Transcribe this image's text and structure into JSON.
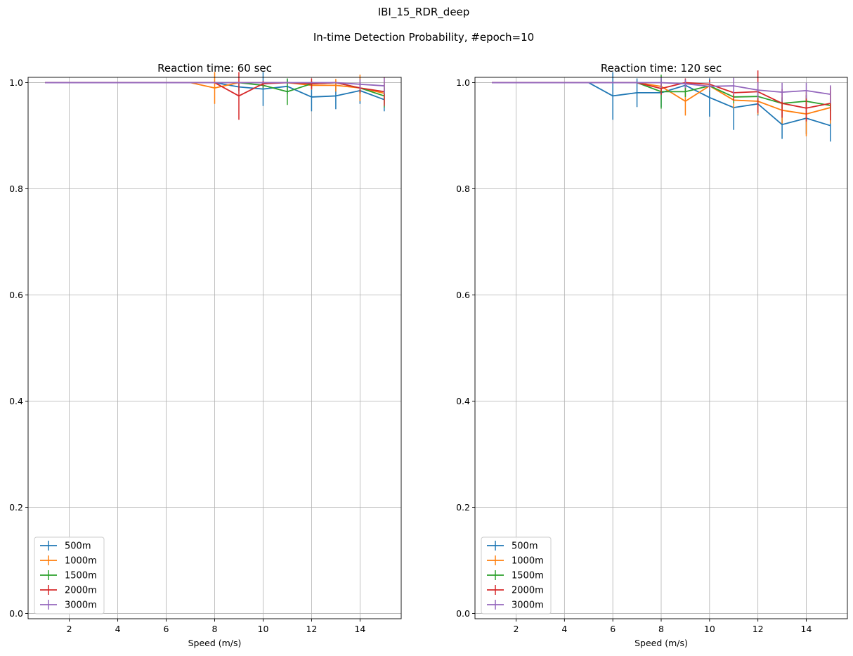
{
  "figure": {
    "title": "IBI_15_RDR_deep",
    "subtitle": "In-time Detection Probability, #epoch=10"
  },
  "chart_data": [
    {
      "type": "line",
      "title": "Reaction time: 60 sec",
      "xlabel": "Speed (m/s)",
      "ylabel": "",
      "xlim": [
        0.3,
        15.7
      ],
      "ylim": [
        -0.01,
        1.01
      ],
      "xticks": [
        2,
        4,
        6,
        8,
        10,
        12,
        14
      ],
      "yticks": [
        0.0,
        0.2,
        0.4,
        0.6,
        0.8,
        1.0
      ],
      "grid": true,
      "legend_position": "lower-left",
      "x": [
        1,
        2,
        3,
        4,
        5,
        6,
        7,
        8,
        9,
        10,
        11,
        12,
        13,
        14,
        15
      ],
      "series": [
        {
          "name": "500m",
          "color": "#1f77b4",
          "values": [
            1,
            1,
            1,
            1,
            1,
            1,
            1,
            1,
            0.992,
            0.988,
            0.993,
            0.973,
            0.975,
            0.985,
            0.968
          ],
          "errors": [
            0,
            0,
            0,
            0,
            0,
            0,
            0,
            0,
            0.008,
            0.032,
            0.014,
            0.027,
            0.025,
            0.025,
            0.022
          ]
        },
        {
          "name": "1000m",
          "color": "#ff7f0e",
          "values": [
            1,
            1,
            1,
            1,
            1,
            1,
            1,
            0.99,
            1,
            1,
            1,
            0.995,
            0.995,
            0.99,
            0.98
          ],
          "errors": [
            0,
            0,
            0,
            0,
            0,
            0,
            0,
            0.03,
            0,
            0,
            0,
            0.008,
            0.012,
            0.025,
            0.02
          ]
        },
        {
          "name": "1500m",
          "color": "#2ca02c",
          "values": [
            1,
            1,
            1,
            1,
            1,
            1,
            1,
            1,
            1,
            0.995,
            0.983,
            0.998,
            1,
            0.99,
            0.975
          ],
          "errors": [
            0,
            0,
            0,
            0,
            0,
            0,
            0,
            0,
            0,
            0.005,
            0.025,
            0.005,
            0,
            0.01,
            0.022
          ]
        },
        {
          "name": "2000m",
          "color": "#d62728",
          "values": [
            1,
            1,
            1,
            1,
            1,
            1,
            1,
            1,
            0.975,
            0.998,
            1,
            0.998,
            1,
            0.99,
            0.983
          ],
          "errors": [
            0,
            0,
            0,
            0,
            0,
            0,
            0,
            0,
            0.045,
            0.005,
            0,
            0.01,
            0,
            0.01,
            0.027
          ]
        },
        {
          "name": "3000m",
          "color": "#9467bd",
          "values": [
            1,
            1,
            1,
            1,
            1,
            1,
            1,
            1,
            1,
            1,
            1,
            1,
            1,
            0.997,
            0.994
          ],
          "errors": [
            0,
            0,
            0,
            0,
            0,
            0,
            0,
            0,
            0,
            0,
            0,
            0,
            0,
            0.01,
            0.015
          ]
        }
      ]
    },
    {
      "type": "line",
      "title": "Reaction time: 120 sec",
      "xlabel": "Speed (m/s)",
      "ylabel": "",
      "xlim": [
        0.3,
        15.7
      ],
      "ylim": [
        -0.01,
        1.01
      ],
      "xticks": [
        2,
        4,
        6,
        8,
        10,
        12,
        14
      ],
      "yticks": [
        0.0,
        0.2,
        0.4,
        0.6,
        0.8,
        1.0
      ],
      "grid": true,
      "legend_position": "lower-left",
      "x": [
        1,
        2,
        3,
        4,
        5,
        6,
        7,
        8,
        9,
        10,
        11,
        12,
        13,
        14,
        15
      ],
      "series": [
        {
          "name": "500m",
          "color": "#1f77b4",
          "values": [
            1,
            1,
            1,
            1,
            1,
            0.975,
            0.981,
            0.981,
            0.995,
            0.972,
            0.953,
            0.96,
            0.921,
            0.933,
            0.919
          ],
          "errors": [
            0,
            0,
            0,
            0,
            0,
            0.045,
            0.027,
            0.027,
            0.01,
            0.036,
            0.042,
            0.022,
            0.027,
            0.03,
            0.03
          ]
        },
        {
          "name": "1000m",
          "color": "#ff7f0e",
          "values": [
            1,
            1,
            1,
            1,
            1,
            1,
            1,
            0.993,
            0.965,
            0.994,
            0.967,
            0.965,
            0.948,
            0.941,
            0.953
          ],
          "errors": [
            0,
            0,
            0,
            0,
            0,
            0,
            0,
            0.01,
            0.027,
            0.01,
            0.015,
            0.025,
            0.025,
            0.042,
            0.03
          ]
        },
        {
          "name": "1500m",
          "color": "#2ca02c",
          "values": [
            1,
            1,
            1,
            1,
            1,
            1,
            1,
            0.983,
            0.983,
            0.994,
            0.973,
            0.974,
            0.961,
            0.965,
            0.957
          ],
          "errors": [
            0,
            0,
            0,
            0,
            0,
            0,
            0,
            0.032,
            0.01,
            0.01,
            0.012,
            0.012,
            0.01,
            0.01,
            0.01
          ]
        },
        {
          "name": "2000m",
          "color": "#d62728",
          "values": [
            1,
            1,
            1,
            1,
            1,
            1,
            1,
            0.989,
            1,
            0.997,
            0.981,
            0.983,
            0.961,
            0.952,
            0.961
          ],
          "errors": [
            0,
            0,
            0,
            0,
            0,
            0,
            0,
            0.012,
            0.008,
            0.008,
            0.015,
            0.04,
            0.027,
            0.025,
            0.032
          ]
        },
        {
          "name": "3000m",
          "color": "#9467bd",
          "values": [
            1,
            1,
            1,
            1,
            1,
            1,
            1,
            1,
            0.998,
            0.993,
            0.994,
            0.986,
            0.982,
            0.985,
            0.978
          ],
          "errors": [
            0,
            0,
            0,
            0,
            0,
            0,
            0,
            0.01,
            0.008,
            0.008,
            0.015,
            0.015,
            0.018,
            0.015,
            0.017
          ]
        }
      ]
    }
  ]
}
